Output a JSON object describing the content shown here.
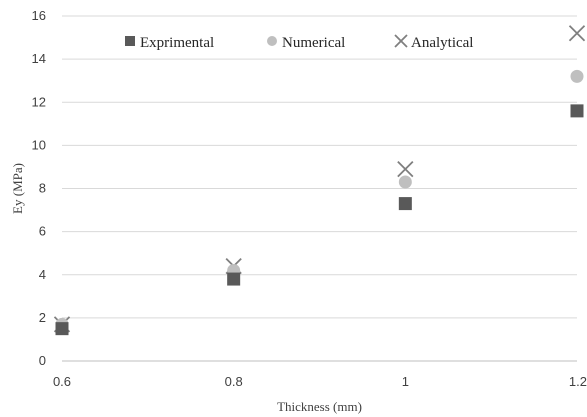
{
  "chart_data": {
    "type": "scatter",
    "xlabel": "Thickness (mm)",
    "ylabel": "Ey (MPa)",
    "xlim": [
      0.6,
      1.2
    ],
    "ylim": [
      0,
      16
    ],
    "x_ticks": [
      "0.6",
      "0.8",
      "1",
      "1.2"
    ],
    "y_ticks": [
      "0",
      "2",
      "4",
      "6",
      "8",
      "10",
      "12",
      "14",
      "16"
    ],
    "grid": "horizontal",
    "legend_position": "top",
    "series": [
      {
        "name": "Exprimental",
        "marker": "square",
        "color": "#595959",
        "x": [
          0.6,
          0.8,
          1.0,
          1.2
        ],
        "y": [
          1.5,
          3.8,
          7.3,
          11.6
        ]
      },
      {
        "name": "Numerical",
        "marker": "circle",
        "color": "#bfbfbf",
        "x": [
          0.6,
          0.8,
          1.0,
          1.2
        ],
        "y": [
          1.7,
          4.2,
          8.3,
          13.2
        ]
      },
      {
        "name": "Analytical",
        "marker": "x",
        "color": "#7f7f7f",
        "x": [
          0.6,
          0.8,
          1.0,
          1.2
        ],
        "y": [
          1.7,
          4.4,
          8.9,
          15.2
        ]
      }
    ]
  }
}
